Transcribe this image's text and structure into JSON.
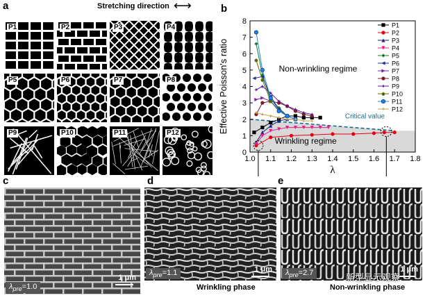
{
  "panels": {
    "a": "a",
    "b": "b",
    "c": "c",
    "d": "d",
    "e": "e"
  },
  "stretch_label": "Stretching direction",
  "stretch_arrow": "⟷",
  "patterns": [
    "P1",
    "P2",
    "P3",
    "P4",
    "P5",
    "P6",
    "P7",
    "P8",
    "P9",
    "P10",
    "P11",
    "P12"
  ],
  "chart_data": {
    "type": "line",
    "title": "",
    "xlabel": "λ",
    "ylabel": "Effective Poisson's ratio",
    "xlim": [
      1.0,
      1.8
    ],
    "ylim": [
      0,
      8
    ],
    "xticks": [
      "1.0",
      "1.1",
      "1.2",
      "1.3",
      "1.4",
      "1.5",
      "1.6",
      "1.7",
      "1.8"
    ],
    "yticks": [
      "0",
      "1",
      "2",
      "3",
      "4",
      "5",
      "6",
      "7",
      "8"
    ],
    "legend_position": "top-right",
    "annotations": {
      "non_wrinkling": "Non-wrinkling regime",
      "wrinkling": "Wrinkling regime",
      "critical": "Critical value"
    },
    "critical_line": {
      "x": [
        1.0,
        1.7
      ],
      "y": [
        2.0,
        1.3
      ]
    },
    "series": [
      {
        "name": "P1",
        "color": "#000000",
        "marker": "square",
        "x": [
          1.02,
          1.06,
          1.1,
          1.14,
          1.18,
          1.22,
          1.26,
          1.3,
          1.34
        ],
        "y": [
          1.2,
          1.5,
          1.8,
          2.0,
          2.2,
          2.2,
          2.1,
          2.1,
          2.1
        ]
      },
      {
        "name": "P2",
        "color": "#e60012",
        "marker": "circle",
        "x": [
          1.03,
          1.1,
          1.2,
          1.3,
          1.4,
          1.5,
          1.6,
          1.65,
          1.7
        ],
        "y": [
          0.4,
          0.9,
          1.0,
          1.05,
          1.1,
          1.1,
          1.15,
          1.2,
          1.2
        ]
      },
      {
        "name": "P3",
        "color": "#1a237e",
        "marker": "triangle-up",
        "x": [
          1.03,
          1.06,
          1.1,
          1.14,
          1.18,
          1.22
        ],
        "y": [
          0.6,
          1.2,
          1.6,
          1.9,
          2.0,
          2.0
        ]
      },
      {
        "name": "P4",
        "color": "#e91e8c",
        "marker": "triangle-down",
        "x": [
          1.03,
          1.06,
          1.1,
          1.14,
          1.18,
          1.22,
          1.26,
          1.3,
          1.34,
          1.38
        ],
        "y": [
          0.5,
          1.0,
          1.3,
          1.4,
          1.5,
          1.5,
          1.5,
          1.5,
          1.5,
          1.5
        ]
      },
      {
        "name": "P5",
        "color": "#1b7a2a",
        "marker": "diamond",
        "x": [
          1.03,
          1.06,
          1.1,
          1.14,
          1.18,
          1.22
        ],
        "y": [
          6.6,
          4.7,
          3.2,
          2.7,
          2.2,
          2.0
        ]
      },
      {
        "name": "P6",
        "color": "#1f2f8f",
        "marker": "triangle-left",
        "x": [
          1.02,
          1.06,
          1.1,
          1.14,
          1.18,
          1.22
        ],
        "y": [
          4.5,
          4.6,
          3.4,
          2.6,
          2.2,
          2.0
        ]
      },
      {
        "name": "P7",
        "color": "#7b1fa2",
        "marker": "triangle-right",
        "x": [
          1.03,
          1.06,
          1.1,
          1.14
        ],
        "y": [
          3.2,
          3.3,
          3.1,
          2.5
        ]
      },
      {
        "name": "P8",
        "color": "#7a1a2a",
        "marker": "hexagon",
        "x": [
          1.03,
          1.06,
          1.1,
          1.14,
          1.18,
          1.22,
          1.26,
          1.3
        ],
        "y": [
          2.3,
          3.0,
          3.1,
          3.0,
          2.8,
          2.5,
          2.3,
          2.2
        ]
      },
      {
        "name": "P9",
        "color": "#5c1a9c",
        "marker": "star",
        "x": [
          1.03,
          1.06,
          1.1,
          1.14,
          1.18,
          1.22,
          1.26,
          1.3
        ],
        "y": [
          3.8,
          4.0,
          3.6,
          3.1,
          2.8,
          2.6,
          2.4,
          2.3
        ]
      },
      {
        "name": "P10",
        "color": "#556b00",
        "marker": "pentagon",
        "x": [
          1.03,
          1.06,
          1.1,
          1.14
        ],
        "y": [
          5.6,
          4.4,
          3.1,
          2.5
        ]
      },
      {
        "name": "P11",
        "color": "#1e88e5",
        "marker": "circle-open",
        "x": [
          1.03,
          1.06,
          1.1,
          1.14,
          1.18,
          1.22
        ],
        "y": [
          7.3,
          5.0,
          3.3,
          2.5,
          2.2,
          2.0
        ]
      },
      {
        "name": "P12",
        "color": "#c8a24a",
        "marker": "star-small",
        "x": [
          1.03,
          1.06,
          1.1,
          1.14,
          1.18,
          1.22,
          1.26,
          1.3
        ],
        "y": [
          2.4,
          2.3,
          2.2,
          2.1,
          2.0,
          2.0,
          1.9,
          1.9
        ]
      }
    ]
  },
  "sem": {
    "c": {
      "badge_lambda": "λ",
      "badge_sub": "pre",
      "badge_value": "=1.0",
      "scale": "1 μm",
      "caption": ""
    },
    "d": {
      "badge_lambda": "λ",
      "badge_sub": "pre",
      "badge_value": "=1.1",
      "scale": "1 μm",
      "caption": "Wrinkling phase"
    },
    "e": {
      "badge_lambda": "λ",
      "badge_sub": "pre",
      "badge_value": "=2.7",
      "scale": "1 μm",
      "caption": "Non-wrinkling phase"
    }
  },
  "watermark": "新型显示观察"
}
